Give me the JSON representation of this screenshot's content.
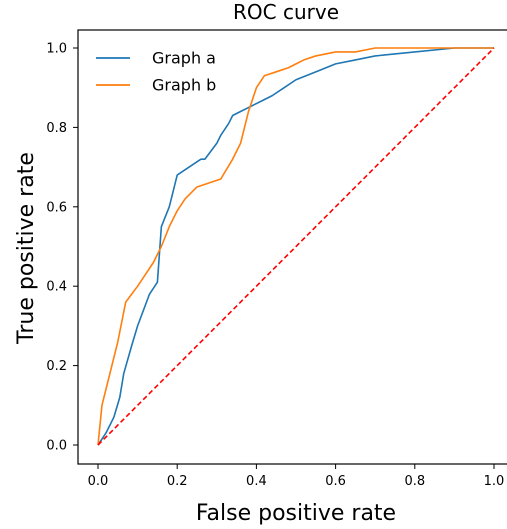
{
  "chart_data": {
    "type": "line",
    "title": "ROC curve",
    "xlabel": "False positive rate",
    "ylabel": "True positive rate",
    "xlim": [
      0.0,
      1.0
    ],
    "ylim": [
      0.0,
      1.0
    ],
    "xticks": [
      "0.0",
      "0.2",
      "0.4",
      "0.6",
      "0.8",
      "1.0"
    ],
    "yticks": [
      "0.0",
      "0.2",
      "0.4",
      "0.6",
      "0.8",
      "1.0"
    ],
    "grid": false,
    "legend_position": "top-left",
    "series": [
      {
        "name": "Graph a",
        "color": "#1f77b4",
        "x": [
          0.0,
          0.02,
          0.04,
          0.055,
          0.065,
          0.085,
          0.1,
          0.13,
          0.15,
          0.16,
          0.18,
          0.2,
          0.23,
          0.26,
          0.27,
          0.3,
          0.31,
          0.33,
          0.34,
          0.36,
          0.38,
          0.4,
          0.42,
          0.44,
          0.47,
          0.5,
          0.55,
          0.6,
          0.65,
          0.7,
          0.8,
          0.9,
          1.0
        ],
        "y": [
          0.0,
          0.03,
          0.07,
          0.12,
          0.18,
          0.25,
          0.3,
          0.38,
          0.41,
          0.55,
          0.6,
          0.68,
          0.7,
          0.72,
          0.72,
          0.76,
          0.78,
          0.81,
          0.83,
          0.84,
          0.85,
          0.86,
          0.87,
          0.88,
          0.9,
          0.92,
          0.94,
          0.96,
          0.97,
          0.98,
          0.99,
          1.0,
          1.0
        ]
      },
      {
        "name": "Graph b",
        "color": "#ff7f0e",
        "x": [
          0.0,
          0.01,
          0.03,
          0.05,
          0.07,
          0.1,
          0.12,
          0.14,
          0.16,
          0.18,
          0.2,
          0.22,
          0.25,
          0.28,
          0.31,
          0.34,
          0.36,
          0.38,
          0.4,
          0.42,
          0.45,
          0.48,
          0.5,
          0.52,
          0.55,
          0.6,
          0.65,
          0.7,
          0.8,
          0.9,
          1.0
        ],
        "y": [
          0.0,
          0.1,
          0.18,
          0.26,
          0.36,
          0.4,
          0.43,
          0.46,
          0.5,
          0.55,
          0.59,
          0.62,
          0.65,
          0.66,
          0.67,
          0.72,
          0.76,
          0.84,
          0.9,
          0.93,
          0.94,
          0.95,
          0.96,
          0.97,
          0.98,
          0.99,
          0.99,
          1.0,
          1.0,
          1.0,
          1.0
        ]
      },
      {
        "name": "",
        "color": "#ff0000",
        "dashed": true,
        "x": [
          0.0,
          1.0
        ],
        "y": [
          0.0,
          1.0
        ]
      }
    ]
  }
}
